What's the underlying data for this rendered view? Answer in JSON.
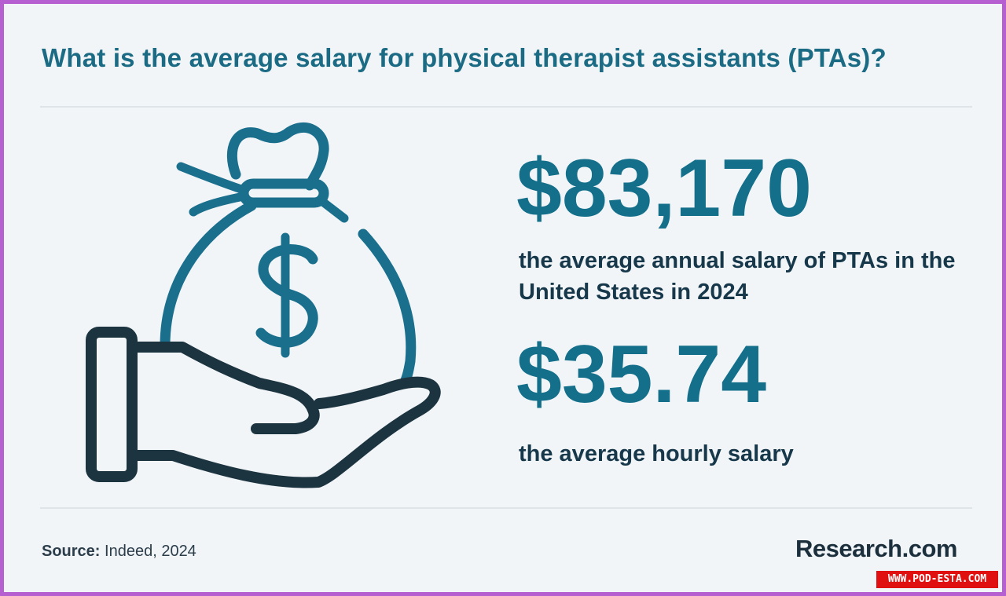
{
  "title": "What is the average salary for physical therapist assistants (PTAs)?",
  "icon": "money-bag-in-hand",
  "annual": {
    "value": "$83,170",
    "description": "the average annual salary of PTAs in the United States in 2024"
  },
  "hourly": {
    "value": "$35.74",
    "description": "the average hourly salary"
  },
  "source": {
    "label": "Source:",
    "text": "Indeed, 2024"
  },
  "brand": "Research.com",
  "watermark": "WWW.POD-ESTA.COM",
  "colors": {
    "accent": "#136f8a",
    "icon_teal": "#1a6f8d",
    "icon_dark": "#1c3440",
    "frame": "#b65fd1",
    "background": "#f2f5f8"
  }
}
